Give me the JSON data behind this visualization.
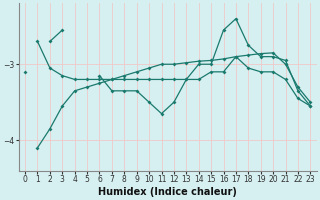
{
  "xlabel": "Humidex (Indice chaleur)",
  "bg_color": "#d6eff0",
  "line_color": "#1a7a6e",
  "grid_color": "#f0c8c8",
  "x": [
    0,
    1,
    2,
    3,
    4,
    5,
    6,
    7,
    8,
    9,
    10,
    11,
    12,
    13,
    14,
    15,
    16,
    17,
    18,
    19,
    20,
    21,
    22,
    23
  ],
  "series": [
    [
      null,
      -2.7,
      -3.05,
      -3.15,
      -3.2,
      -3.2,
      -3.2,
      -3.2,
      -3.2,
      -3.2,
      -3.2,
      -3.2,
      -3.2,
      -3.2,
      -3.2,
      -3.1,
      -3.1,
      -2.9,
      -3.05,
      -3.1,
      -3.1,
      -3.2,
      -3.45,
      -3.55
    ],
    [
      -3.1,
      null,
      null,
      null,
      null,
      null,
      null,
      null,
      null,
      null,
      null,
      null,
      null,
      null,
      null,
      null,
      null,
      null,
      null,
      null,
      null,
      null,
      null,
      null
    ],
    [
      null,
      -4.1,
      -3.85,
      -3.55,
      -3.35,
      -3.3,
      -3.25,
      -3.2,
      -3.15,
      -3.1,
      -3.05,
      -3.0,
      -3.0,
      -2.98,
      -2.96,
      -2.95,
      -2.93,
      -2.9,
      -2.88,
      -2.86,
      -2.85,
      -3.0,
      -3.3,
      -3.5
    ],
    [
      null,
      null,
      -2.7,
      -2.55,
      null,
      null,
      -3.15,
      -3.35,
      -3.35,
      -3.35,
      -3.5,
      -3.65,
      -3.5,
      -3.2,
      -3.0,
      -3.0,
      -2.55,
      -2.4,
      -2.75,
      -2.9,
      -2.9,
      -2.95,
      -3.35,
      -3.55
    ]
  ],
  "yticks": [
    -4,
    -3
  ],
  "ylim": [
    -4.4,
    -2.2
  ],
  "xlim": [
    -0.5,
    23.5
  ]
}
